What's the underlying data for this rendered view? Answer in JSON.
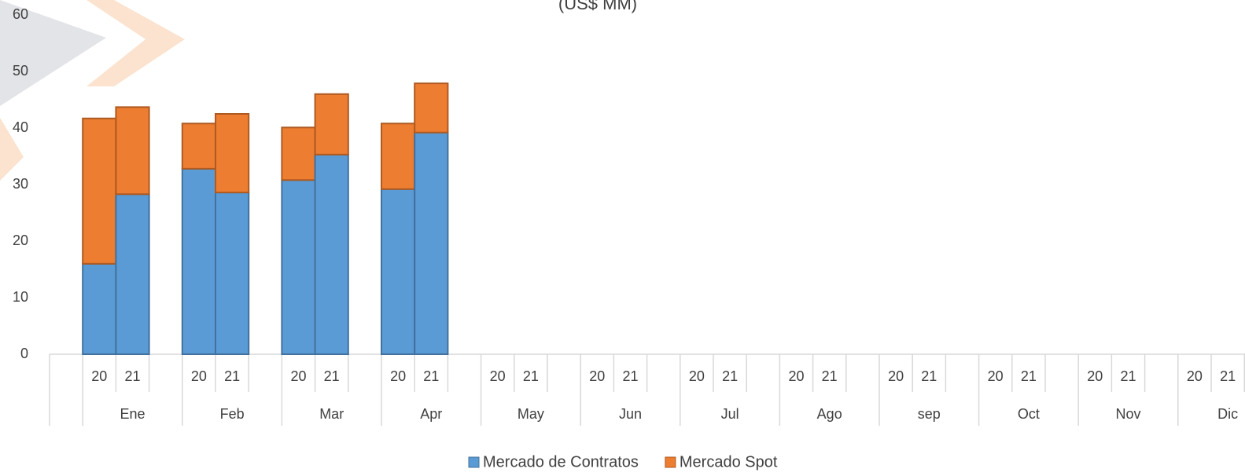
{
  "chart_data": {
    "type": "stacked_bar",
    "title": "(US$ MM)",
    "groups": [
      "Ene",
      "Feb",
      "Mar",
      "Apr",
      "May",
      "Jun",
      "Jul",
      "Ago",
      "sep",
      "Oct",
      "Nov",
      "Dic"
    ],
    "categories": [
      "20",
      "21",
      "20",
      "21",
      "20",
      "21",
      "20",
      "21",
      "20",
      "21",
      "20",
      "21",
      "20",
      "21",
      "20",
      "21",
      "20",
      "21",
      "20",
      "21",
      "20",
      "21",
      "20",
      "21"
    ],
    "series": [
      {
        "name": "Mercado de Contratos",
        "color": "#5b9bd5",
        "stroke": "#41719c",
        "values": [
          16.0,
          28.3,
          32.8,
          28.6,
          30.8,
          35.3,
          29.2,
          39.2,
          null,
          null,
          null,
          null,
          null,
          null,
          null,
          null,
          null,
          null,
          null,
          null,
          null,
          null,
          null,
          null
        ]
      },
      {
        "name": "Mercado Spot",
        "color": "#ed7d31",
        "stroke": "#ae5a21",
        "values": [
          25.7,
          15.4,
          8.0,
          13.9,
          9.3,
          10.7,
          11.6,
          8.7,
          null,
          null,
          null,
          null,
          null,
          null,
          null,
          null,
          null,
          null,
          null,
          null,
          null,
          null,
          null,
          null
        ]
      }
    ],
    "ylim": [
      0,
      60
    ],
    "yticks": [
      0,
      10,
      20,
      30,
      40,
      50,
      60
    ],
    "grid": false,
    "legend": "bottom"
  }
}
